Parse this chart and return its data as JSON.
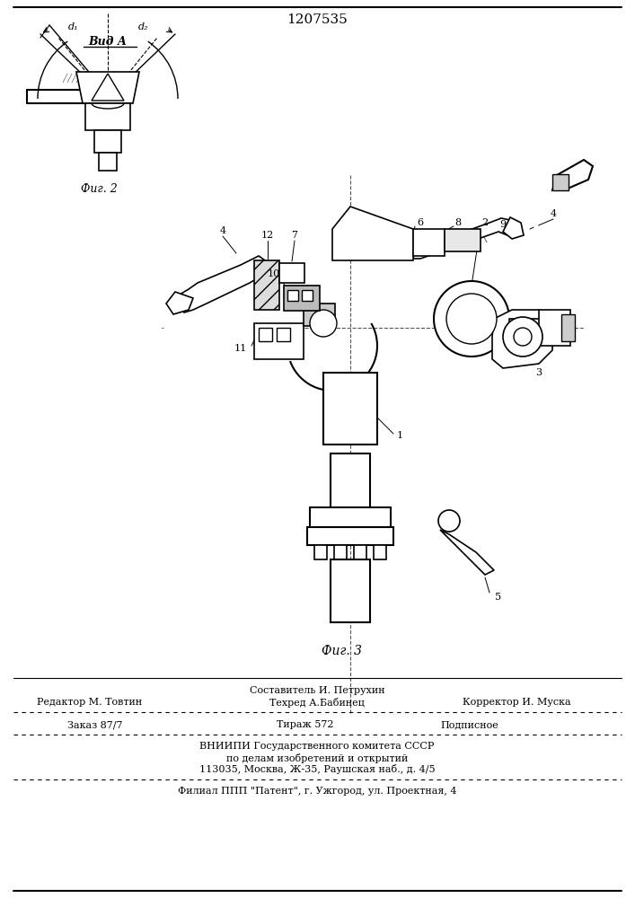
{
  "patent_number": "1207535",
  "background_color": "#ffffff",
  "fig_width": 7.07,
  "fig_height": 10.0,
  "footer": {
    "line1_center": "Составитель И. Петрухин",
    "line1_left": "Редактор М. Товтин",
    "line1_center_sub": "Техред А.Бабинец",
    "line1_right": "Корректор И. Муска",
    "line2_left": "Заказ 87/7",
    "line2_center": "Тираж 572",
    "line2_right": "Подписное",
    "line3": "ВНИИПИ Государственного комитета СССР",
    "line4": "по делам изобретений и открытий",
    "line5": "113035, Москва, Ж-35, Раушская наб., д. 4/5",
    "line6": "Филиал ППП \"Патент\", г. Ужгород, ул. Проектная, 4"
  },
  "fig2_label": "Фиг. 2",
  "fig3_label": "Фиг. 3",
  "vid_a_label": "Вид А",
  "hatch_color": "#888888"
}
